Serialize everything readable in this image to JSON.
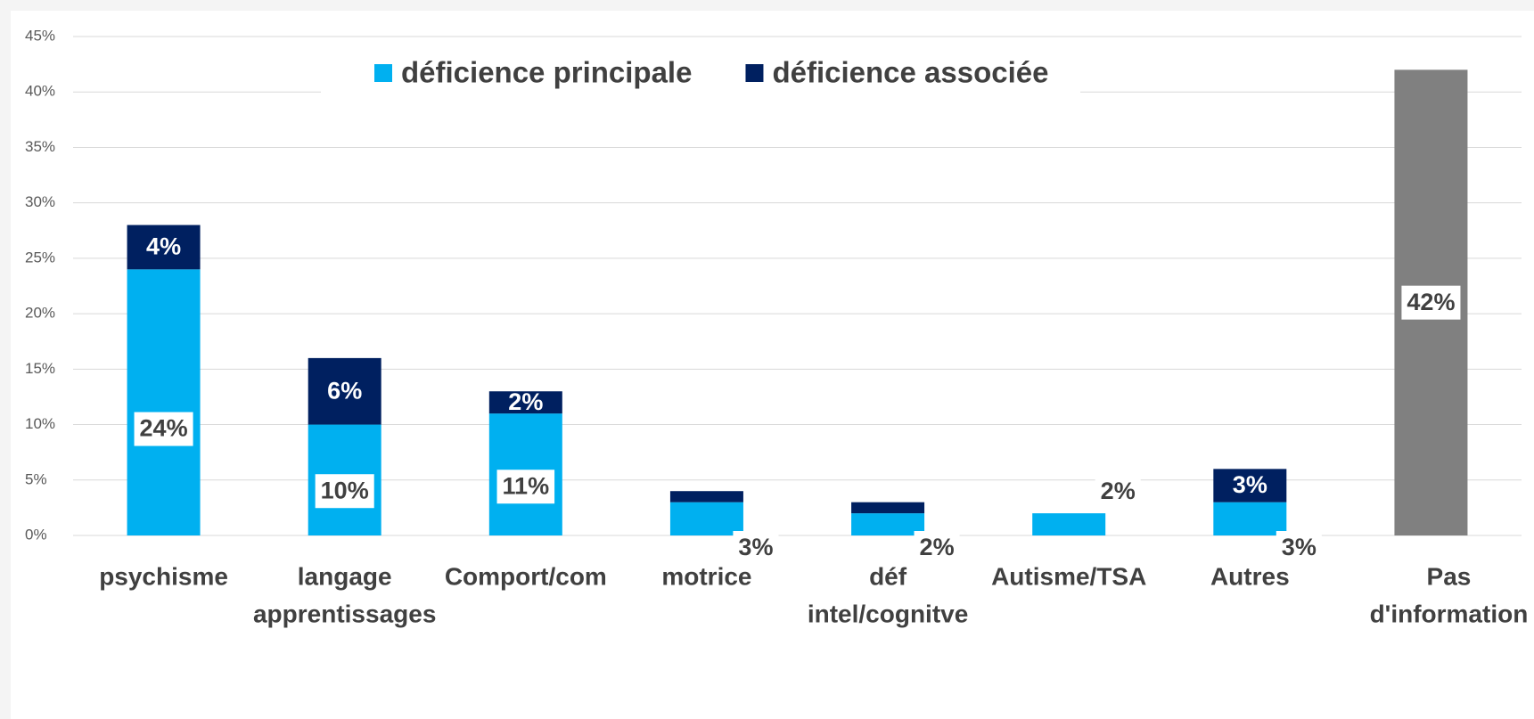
{
  "chart_data": {
    "type": "stacked-bar",
    "categories": [
      [
        "psychisme"
      ],
      [
        "langage",
        "apprentissages"
      ],
      [
        "Comport/com"
      ],
      [
        "motrice"
      ],
      [
        "déf",
        "intel/cognitve"
      ],
      [
        "Autisme/TSA"
      ],
      [
        "Autres"
      ],
      [
        "Pas",
        "d'information"
      ]
    ],
    "series": [
      {
        "name": "déficience principale",
        "color": "#00b0f0",
        "values": [
          24,
          10,
          11,
          3,
          2,
          2,
          3,
          null
        ],
        "value_labels": [
          "24%",
          "10%",
          "11%",
          "3%",
          "2%",
          "2%",
          "3%",
          null
        ]
      },
      {
        "name": "déficience associée",
        "color": "#002060",
        "values": [
          4,
          6,
          2,
          1,
          1,
          null,
          3,
          null
        ],
        "value_labels": [
          "4%",
          "6%",
          "2%",
          null,
          null,
          null,
          "3%",
          null
        ]
      },
      {
        "color": "#808080",
        "values": [
          null,
          null,
          null,
          null,
          null,
          null,
          null,
          42
        ],
        "value_labels": [
          null,
          null,
          null,
          null,
          null,
          null,
          null,
          "42%"
        ]
      }
    ],
    "ylim": [
      0,
      45
    ],
    "yticks": [
      {
        "value": 0,
        "label": "0%"
      },
      {
        "value": 5,
        "label": "5%"
      },
      {
        "value": 10,
        "label": "10%"
      },
      {
        "value": 15,
        "label": "15%"
      },
      {
        "value": 20,
        "label": "20%"
      },
      {
        "value": 25,
        "label": "25%"
      },
      {
        "value": 30,
        "label": "30%"
      },
      {
        "value": 35,
        "label": "35%"
      },
      {
        "value": 40,
        "label": "40%"
      },
      {
        "value": 45,
        "label": "45%"
      }
    ],
    "grid": true,
    "legend": "top"
  }
}
